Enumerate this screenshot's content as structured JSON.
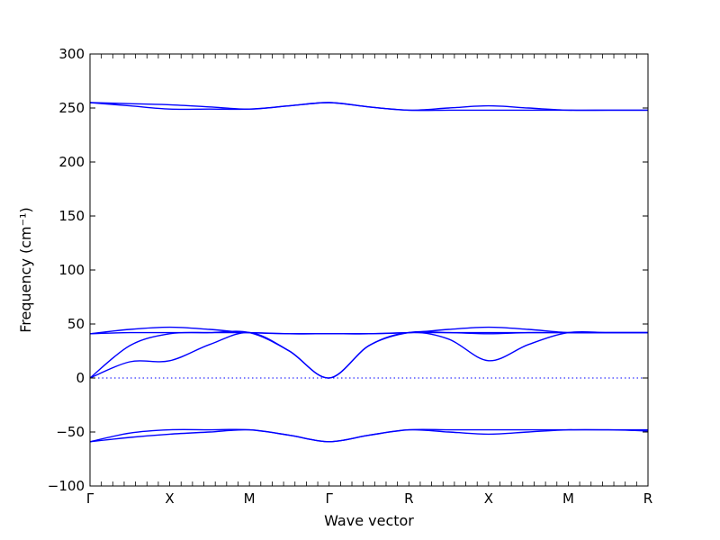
{
  "chart_data": {
    "type": "line",
    "xlabel": "Wave vector",
    "ylabel": "Frequency (cm⁻¹)",
    "ylim": [
      -100,
      300
    ],
    "yticks": [
      -100,
      -50,
      0,
      50,
      100,
      150,
      200,
      250,
      300
    ],
    "ytick_labels": [
      "−100",
      "−50",
      "0",
      "50",
      "100",
      "150",
      "200",
      "250",
      "300"
    ],
    "x_points": [
      0,
      1,
      2,
      3,
      4,
      5,
      6,
      7
    ],
    "x_labels": [
      "Γ",
      "X",
      "M",
      "Γ",
      "R",
      "X",
      "M",
      "R"
    ],
    "grid": false,
    "legend": false,
    "line_color": "#0000ff",
    "zero_line": {
      "y": 0,
      "style": "dotted",
      "color": "#0000ff"
    },
    "series": [
      {
        "x": [
          0,
          0.5,
          1,
          1.5,
          2,
          2.5,
          3,
          3.5,
          4,
          4.5,
          5,
          5.5,
          6,
          6.5,
          7
        ],
        "values": [
          255,
          254,
          253,
          251,
          249,
          252,
          255,
          251,
          248,
          250,
          252,
          250,
          248,
          248,
          248
        ]
      },
      {
        "x": [
          0,
          0.5,
          1,
          1.5,
          2,
          2.5,
          3,
          3.5,
          4,
          4.5,
          5,
          5.5,
          6,
          6.5,
          7
        ],
        "values": [
          255,
          252,
          249,
          249,
          249,
          252,
          255,
          251,
          248,
          248,
          248,
          248,
          248,
          248,
          248
        ]
      },
      {
        "x": [
          0,
          0.5,
          1,
          1.5,
          2,
          2.5,
          3,
          3.5,
          4,
          4.5,
          5,
          5.5,
          6,
          6.5,
          7
        ],
        "values": [
          41,
          45,
          47,
          45,
          42,
          41,
          41,
          41,
          42,
          45,
          47,
          45,
          42,
          42,
          42
        ]
      },
      {
        "x": [
          0,
          0.5,
          1,
          1.5,
          2,
          2.5,
          3,
          3.5,
          4,
          4.5,
          5,
          5.5,
          6,
          6.5,
          7
        ],
        "values": [
          41,
          42,
          42,
          42,
          42,
          41,
          41,
          41,
          42,
          42,
          42,
          42,
          42,
          42,
          42
        ]
      },
      {
        "x": [
          0,
          0.5,
          1,
          1.5,
          2,
          2.5,
          3,
          3.5,
          4,
          4.5,
          5,
          5.5,
          6,
          6.5,
          7
        ],
        "values": [
          0,
          30,
          41,
          42,
          42,
          25,
          0,
          30,
          42,
          42,
          41,
          42,
          42,
          42,
          42
        ]
      },
      {
        "x": [
          0,
          0.5,
          1,
          1.5,
          2,
          2.5,
          3,
          3.5,
          4,
          4.5,
          5,
          5.5,
          6,
          6.5,
          7
        ],
        "values": [
          0,
          15,
          16,
          31,
          42,
          25,
          0,
          30,
          42,
          36,
          16,
          31,
          42,
          42,
          42
        ]
      },
      {
        "x": [
          0,
          0.5,
          1,
          1.5,
          2,
          2.5,
          3,
          3.5,
          4,
          4.5,
          5,
          5.5,
          6,
          6.5,
          7
        ],
        "values": [
          -59,
          -55,
          -52,
          -50,
          -48,
          -53,
          -59,
          -53,
          -48,
          -50,
          -52,
          -50,
          -48,
          -48,
          -49
        ]
      },
      {
        "x": [
          0,
          0.5,
          1,
          1.5,
          2,
          2.5,
          3,
          3.5,
          4,
          4.5,
          5,
          5.5,
          6,
          6.5,
          7
        ],
        "values": [
          -59,
          -51,
          -48,
          -48,
          -48,
          -53,
          -59,
          -53,
          -48,
          -48,
          -48,
          -48,
          -48,
          -48,
          -48
        ]
      }
    ]
  }
}
